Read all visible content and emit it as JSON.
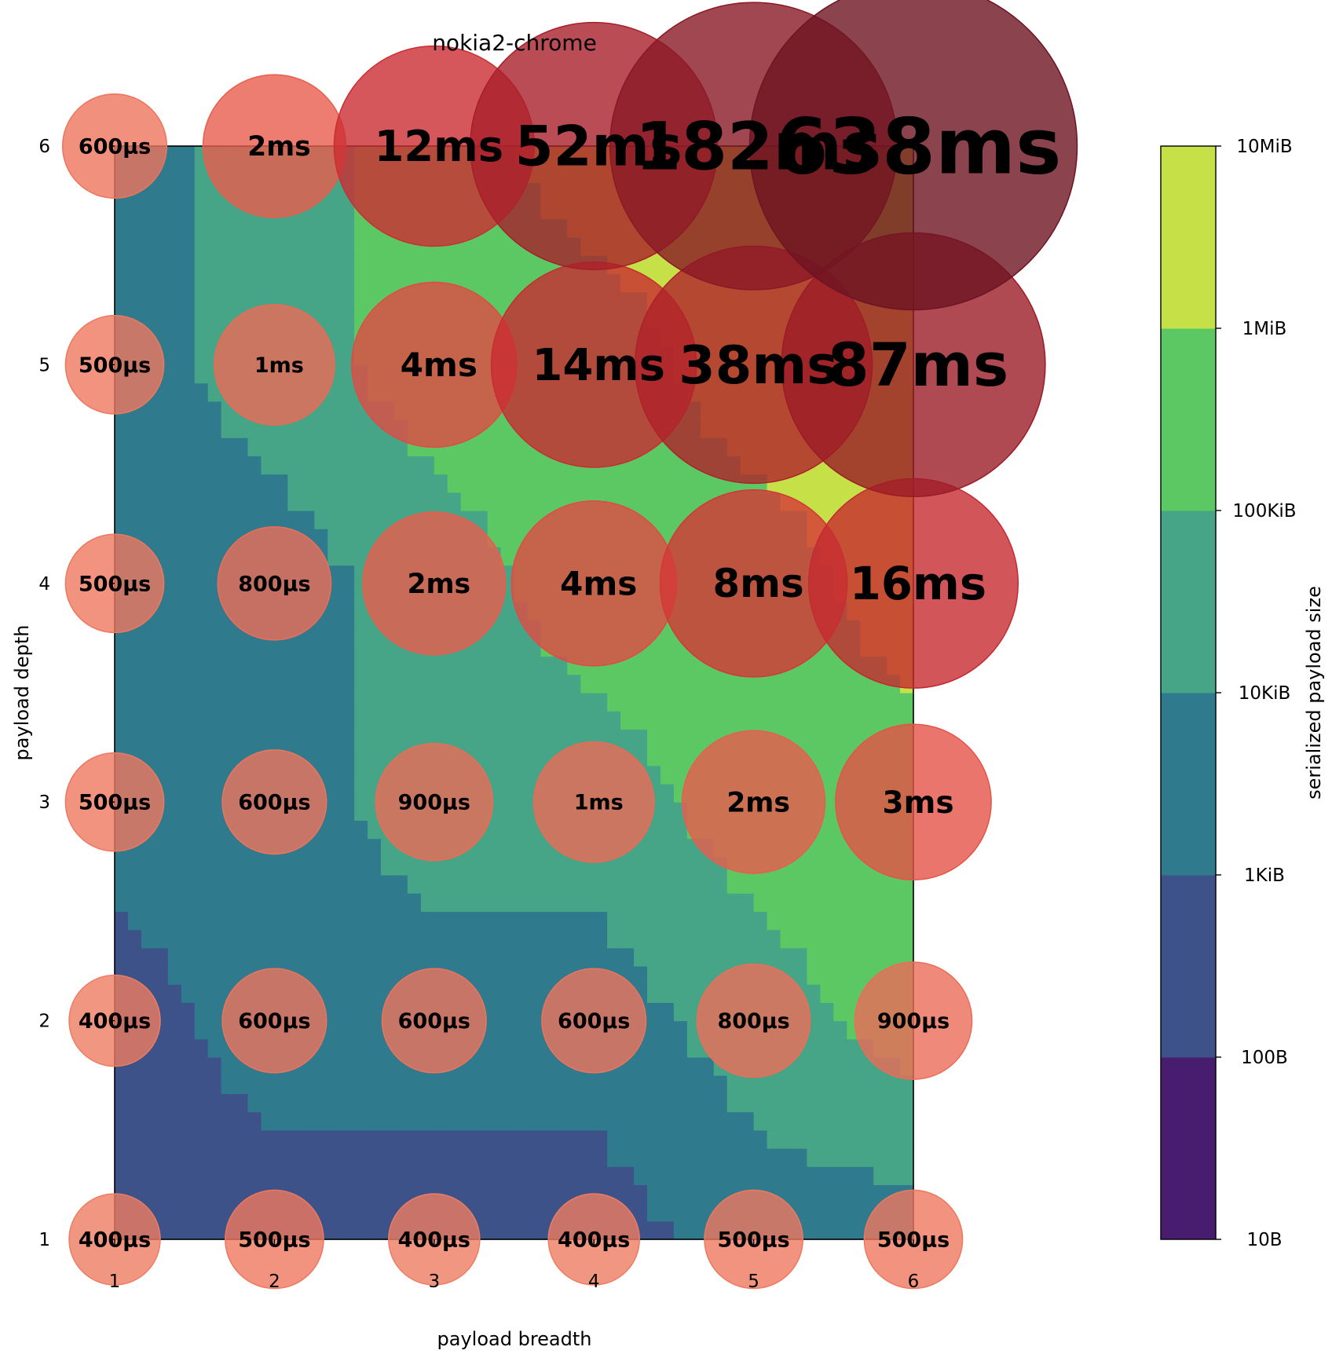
{
  "chart_data": {
    "type": "scatter",
    "title": "nokia2-chrome",
    "xlabel": "payload breadth",
    "ylabel": "payload depth",
    "x_ticks": [
      "1",
      "2",
      "3",
      "4",
      "5",
      "6"
    ],
    "y_ticks": [
      "1",
      "2",
      "3",
      "4",
      "5",
      "6"
    ],
    "xlim": [
      1,
      6
    ],
    "ylim": [
      1,
      6
    ],
    "grid": false,
    "background": {
      "type": "filled-contour",
      "label": "serialized payload size",
      "colorbar_ticks": [
        "10B",
        "100B",
        "1KiB",
        "10KiB",
        "100KiB",
        "1MiB",
        "10MiB"
      ],
      "level_colors": [
        "#481c6e",
        "#3d5289",
        "#307a8d",
        "#45a586",
        "#5cc863",
        "#c6e048"
      ],
      "region_values_by_row": [
        {
          "depth": 1,
          "levels": [
            1,
            1,
            1,
            1,
            2,
            2
          ]
        },
        {
          "depth": 2,
          "levels": [
            1,
            2,
            2,
            2,
            3,
            4
          ]
        },
        {
          "depth": 3,
          "levels": [
            2,
            2,
            3,
            3,
            4,
            4
          ]
        },
        {
          "depth": 4,
          "levels": [
            2,
            2,
            3,
            4,
            4,
            5
          ]
        },
        {
          "depth": 5,
          "levels": [
            2,
            3,
            4,
            4,
            5,
            5
          ]
        },
        {
          "depth": 6,
          "levels": [
            2,
            3,
            4,
            5,
            5,
            5
          ]
        }
      ]
    },
    "series": [
      {
        "type": "bubble",
        "points": [
          {
            "x": 1,
            "y": 1,
            "label": "400µs",
            "ms": 0.4
          },
          {
            "x": 2,
            "y": 1,
            "label": "500µs",
            "ms": 0.5
          },
          {
            "x": 3,
            "y": 1,
            "label": "400µs",
            "ms": 0.4
          },
          {
            "x": 4,
            "y": 1,
            "label": "400µs",
            "ms": 0.4
          },
          {
            "x": 5,
            "y": 1,
            "label": "500µs",
            "ms": 0.5
          },
          {
            "x": 6,
            "y": 1,
            "label": "500µs",
            "ms": 0.5
          },
          {
            "x": 1,
            "y": 2,
            "label": "400µs",
            "ms": 0.4
          },
          {
            "x": 2,
            "y": 2,
            "label": "600µs",
            "ms": 0.6
          },
          {
            "x": 3,
            "y": 2,
            "label": "600µs",
            "ms": 0.6
          },
          {
            "x": 4,
            "y": 2,
            "label": "600µs",
            "ms": 0.6
          },
          {
            "x": 5,
            "y": 2,
            "label": "800µs",
            "ms": 0.8
          },
          {
            "x": 6,
            "y": 2,
            "label": "900µs",
            "ms": 0.9
          },
          {
            "x": 1,
            "y": 3,
            "label": "500µs",
            "ms": 0.5
          },
          {
            "x": 2,
            "y": 3,
            "label": "600µs",
            "ms": 0.6
          },
          {
            "x": 3,
            "y": 3,
            "label": "900µs",
            "ms": 0.9
          },
          {
            "x": 4,
            "y": 3,
            "label": "1ms",
            "ms": 1
          },
          {
            "x": 5,
            "y": 3,
            "label": "2ms",
            "ms": 2
          },
          {
            "x": 6,
            "y": 3,
            "label": "3ms",
            "ms": 3
          },
          {
            "x": 1,
            "y": 4,
            "label": "500µs",
            "ms": 0.5
          },
          {
            "x": 2,
            "y": 4,
            "label": "800µs",
            "ms": 0.8
          },
          {
            "x": 3,
            "y": 4,
            "label": "2ms",
            "ms": 2
          },
          {
            "x": 4,
            "y": 4,
            "label": "4ms",
            "ms": 4
          },
          {
            "x": 5,
            "y": 4,
            "label": "8ms",
            "ms": 8
          },
          {
            "x": 6,
            "y": 4,
            "label": "16ms",
            "ms": 16
          },
          {
            "x": 1,
            "y": 5,
            "label": "500µs",
            "ms": 0.5
          },
          {
            "x": 2,
            "y": 5,
            "label": "1ms",
            "ms": 1
          },
          {
            "x": 3,
            "y": 5,
            "label": "4ms",
            "ms": 4
          },
          {
            "x": 4,
            "y": 5,
            "label": "14ms",
            "ms": 14
          },
          {
            "x": 5,
            "y": 5,
            "label": "38ms",
            "ms": 38
          },
          {
            "x": 6,
            "y": 5,
            "label": "87ms",
            "ms": 87
          },
          {
            "x": 1,
            "y": 6,
            "label": "600µs",
            "ms": 0.6
          },
          {
            "x": 2,
            "y": 6,
            "label": "2ms",
            "ms": 2
          },
          {
            "x": 3,
            "y": 6,
            "label": "12ms",
            "ms": 12
          },
          {
            "x": 4,
            "y": 6,
            "label": "52ms",
            "ms": 52
          },
          {
            "x": 5,
            "y": 6,
            "label": "182ms",
            "ms": 182
          },
          {
            "x": 6,
            "y": 6,
            "label": "638ms",
            "ms": 638
          }
        ]
      }
    ]
  }
}
